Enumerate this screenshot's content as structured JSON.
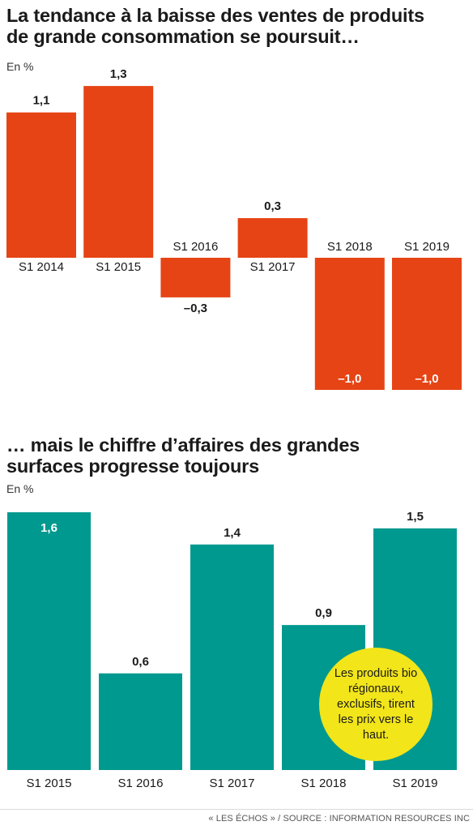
{
  "charts": {
    "top": {
      "title_line1": "La tendance à la baisse des ventes de produits",
      "title_line2": "de grande consommation se poursuit…",
      "unit": "En %"
    },
    "bottom": {
      "title_line1": "… mais le chiffre d’affaires des grandes",
      "title_line2": "surfaces progresse toujours",
      "unit": "En %",
      "annotation": "Les produits bio régionaux, exclusifs, tirent les prix vers le haut."
    }
  },
  "footer": "« LES ÉCHOS » / SOURCE : INFORMATION RESOURCES INC",
  "colors": {
    "orange": "#e64415",
    "teal": "#00998f",
    "yellow": "#f2e51a"
  },
  "chart_data": [
    {
      "type": "bar",
      "title": "La tendance à la baisse des ventes de produits de grande consommation se poursuit…",
      "ylabel": "En %",
      "categories": [
        "S1 2014",
        "S1 2015",
        "S1 2016",
        "S1 2017",
        "S1 2018",
        "S1 2019"
      ],
      "values": [
        1.1,
        1.3,
        -0.3,
        0.3,
        -1.0,
        -1.0
      ],
      "value_labels": [
        "1,1",
        "1,3",
        "–0,3",
        "0,3",
        "–1,0",
        "–1,0"
      ],
      "color": "#e64415",
      "ylim": [
        -1.0,
        1.3
      ],
      "grid": false
    },
    {
      "type": "bar",
      "title": "… mais le chiffre d’affaires des grandes surfaces progresse toujours",
      "ylabel": "En %",
      "categories": [
        "S1 2015",
        "S1 2016",
        "S1 2017",
        "S1 2018",
        "S1 2019"
      ],
      "values": [
        1.6,
        0.6,
        1.4,
        0.9,
        1.5
      ],
      "value_labels": [
        "1,6",
        "0,6",
        "1,4",
        "0,9",
        "1,5"
      ],
      "color": "#00998f",
      "ylim": [
        0,
        1.6
      ],
      "grid": false
    }
  ]
}
